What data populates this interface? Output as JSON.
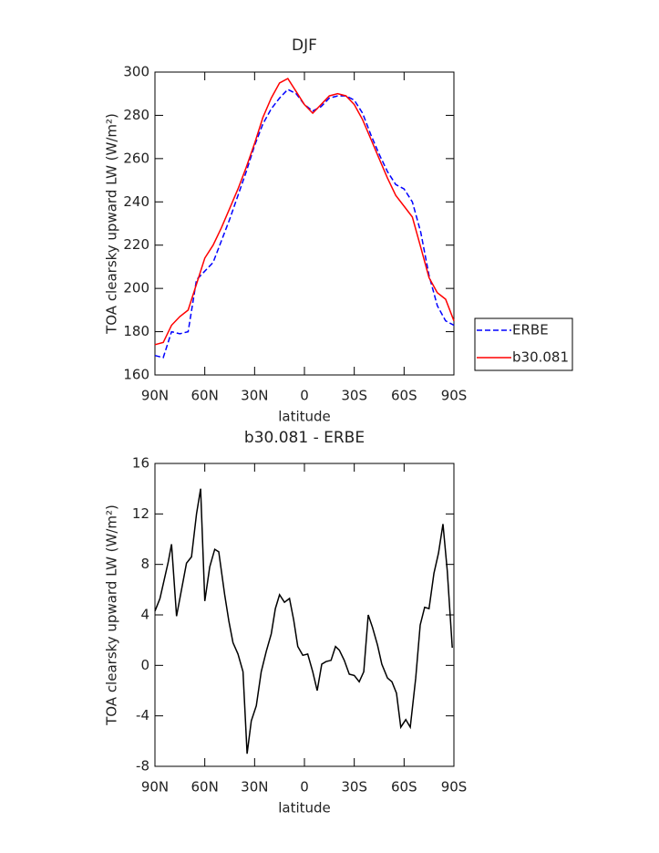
{
  "chart_data": [
    {
      "type": "line",
      "title": "DJF",
      "xlabel": "latitude",
      "ylabel": "TOA clearsky upward LW (W/m²)",
      "x": [
        90,
        85,
        80,
        75,
        70,
        65,
        60,
        55,
        50,
        45,
        40,
        35,
        30,
        25,
        20,
        15,
        10,
        5,
        0,
        -5,
        -10,
        -15,
        -20,
        -25,
        -30,
        -35,
        -40,
        -45,
        -50,
        -55,
        -60,
        -65,
        -70,
        -75,
        -80,
        -85,
        -90
      ],
      "xlim": [
        90,
        -90
      ],
      "xticks": [
        {
          "value": 90,
          "label": "90N"
        },
        {
          "value": 60,
          "label": "60N"
        },
        {
          "value": 30,
          "label": "30N"
        },
        0,
        {
          "value": -30,
          "label": "30S"
        },
        {
          "value": -60,
          "label": "60S"
        },
        {
          "value": -90,
          "label": "90S"
        }
      ],
      "ylim": [
        160,
        300
      ],
      "yticks": [
        160,
        180,
        200,
        220,
        240,
        260,
        280,
        300
      ],
      "legend": "right",
      "series": [
        {
          "name": "ERBE",
          "color": "#0000ff",
          "line_style": "dashed",
          "values": [
            169,
            168,
            180,
            179,
            180,
            204,
            208,
            212,
            222,
            232,
            243,
            254,
            266,
            276,
            283,
            288,
            292,
            290,
            285,
            282,
            284,
            288,
            289,
            289,
            287,
            281,
            271,
            262,
            254,
            248,
            246,
            240,
            226,
            206,
            192,
            185,
            183
          ]
        },
        {
          "name": "b30.081",
          "color": "#ff0000",
          "line_style": "solid",
          "values": [
            174,
            175,
            183,
            187,
            190,
            202,
            214,
            220,
            228,
            237,
            246,
            256,
            267,
            279,
            288,
            295,
            297,
            291,
            285,
            281,
            285,
            289,
            290,
            289,
            285,
            278,
            269,
            260,
            251,
            243,
            238,
            233,
            219,
            205,
            198,
            195,
            185
          ]
        }
      ]
    },
    {
      "type": "line",
      "title": "b30.081 - ERBE",
      "xlabel": "latitude",
      "ylabel": "TOA clearsky upward LW (W/m²)",
      "x": [
        90,
        87,
        82,
        80,
        77,
        74.6,
        71,
        68,
        65,
        62.5,
        60,
        57,
        54,
        51.6,
        48,
        45.5,
        43,
        40,
        37,
        34.5,
        32,
        29,
        26,
        23,
        20,
        17.5,
        15,
        12,
        9,
        6.5,
        4,
        1,
        -2,
        -5,
        -7.7,
        -10.4,
        -13,
        -16,
        -18.7,
        -21,
        -24,
        -27,
        -30,
        -33,
        -35.7,
        -38.4,
        -41,
        -44,
        -46.6,
        -50,
        -52.7,
        -55.4,
        -58,
        -61,
        -63.7,
        -67,
        -69.7,
        -72.4,
        -75,
        -78,
        -80.7,
        -83.4,
        -86,
        -89
      ],
      "xlim": [
        90,
        -90
      ],
      "xticks": [
        {
          "value": 90,
          "label": "90N"
        },
        {
          "value": 60,
          "label": "60N"
        },
        {
          "value": 30,
          "label": "30N"
        },
        0,
        {
          "value": -30,
          "label": "30S"
        },
        {
          "value": -60,
          "label": "60S"
        },
        {
          "value": -90,
          "label": "90S"
        }
      ],
      "ylim": [
        -8,
        16
      ],
      "yticks": [
        -8,
        -4,
        0,
        4,
        8,
        12,
        16
      ],
      "series": [
        {
          "color": "#000000",
          "line_style": "solid",
          "values": [
            4.3,
            5.3,
            8.2,
            9.6,
            3.9,
            5.6,
            8.1,
            8.6,
            12,
            14,
            5.1,
            7.8,
            9.2,
            9,
            5.6,
            3.5,
            1.8,
            0.9,
            -0.5,
            -7,
            -4.4,
            -3.2,
            -0.5,
            1.1,
            2.5,
            4.5,
            5.6,
            5,
            5.3,
            3.6,
            1.5,
            0.8,
            0.9,
            -0.5,
            -2,
            0.1,
            0.3,
            0.4,
            1.5,
            1.2,
            0.4,
            -0.7,
            -0.8,
            -1.3,
            -0.5,
            4,
            3,
            1.6,
            0.1,
            -1,
            -1.3,
            -2.2,
            -4.9,
            -4.3,
            -4.9,
            -1,
            3.2,
            4.6,
            4.5,
            7.3,
            8.9,
            11.2,
            7.5,
            1.4
          ]
        }
      ]
    }
  ]
}
